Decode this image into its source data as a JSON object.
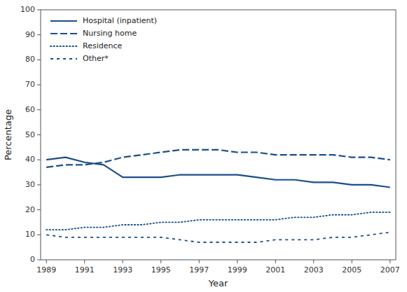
{
  "chart_data": {
    "type": "line",
    "x_label": "Year",
    "y_label": "Percentage",
    "x": [
      1989,
      1990,
      1991,
      1992,
      1993,
      1994,
      1995,
      1996,
      1997,
      1998,
      1999,
      2000,
      2001,
      2002,
      2003,
      2004,
      2005,
      2006,
      2007
    ],
    "series": [
      {
        "name": "Hospital (inpatient)",
        "color": "#1a4f8a",
        "line_style": "solid",
        "values": [
          40,
          41,
          39,
          38,
          33,
          33,
          33,
          34,
          34,
          34,
          34,
          33,
          32,
          32,
          31,
          31,
          30,
          30,
          29
        ]
      },
      {
        "name": "Nursing home",
        "color": "#1a4f8a",
        "line_style": "long-dash",
        "values": [
          37,
          38,
          38,
          39,
          41,
          42,
          43,
          44,
          44,
          44,
          43,
          43,
          42,
          42,
          42,
          42,
          41,
          41,
          40
        ]
      },
      {
        "name": "Residence",
        "color": "#1a4f8a",
        "line_style": "dotted",
        "values": [
          12,
          12,
          13,
          13,
          14,
          14,
          15,
          15,
          16,
          16,
          16,
          16,
          16,
          17,
          17,
          18,
          18,
          19,
          19
        ]
      },
      {
        "name": "Other*",
        "color": "#1a4f8a",
        "line_style": "short-dash",
        "values": [
          10,
          9,
          9,
          9,
          9,
          9,
          9,
          8,
          7,
          7,
          7,
          7,
          8,
          8,
          8,
          9,
          9,
          10,
          11
        ]
      }
    ],
    "xlim": [
      1988.7,
      2007.3
    ],
    "xticks": [
      1989,
      1991,
      1993,
      1995,
      1997,
      1999,
      2001,
      2003,
      2005,
      2007
    ],
    "ylim": [
      0,
      100
    ],
    "yticks": [
      0,
      10,
      20,
      30,
      40,
      50,
      60,
      70,
      80,
      90,
      100
    ],
    "grid": false,
    "legend": "upper left"
  }
}
